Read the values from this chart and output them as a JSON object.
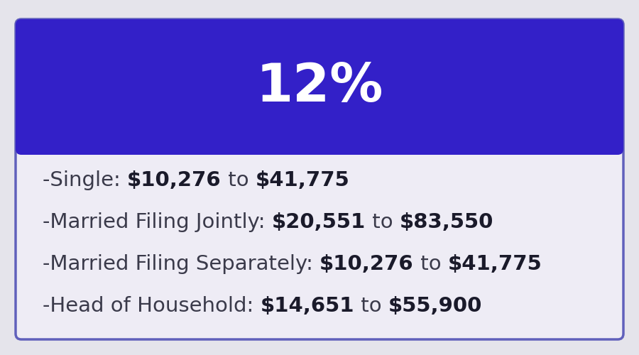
{
  "title": "12%",
  "title_bg_color": "#3320c8",
  "title_text_color": "#ffffff",
  "title_fontsize": 54,
  "body_bg_color": "#eeecf5",
  "outer_bg_color": "#e5e4eb",
  "border_color": "#6060bb",
  "rows": [
    {
      "prefix": "-Single: ",
      "bold1": "$10,276",
      "mid": " to ",
      "bold2": "$41,775"
    },
    {
      "prefix": "-Married Filing Jointly: ",
      "bold1": "$20,551",
      "mid": " to ",
      "bold2": "$83,550"
    },
    {
      "prefix": "-Married Filing Separately: ",
      "bold1": "$10,276",
      "mid": " to ",
      "bold2": "$41,775"
    },
    {
      "prefix": "-Head of Household: ",
      "bold1": "$14,651",
      "mid": " to ",
      "bold2": "$55,900"
    }
  ],
  "normal_text_color": "#3a3a4a",
  "bold_text_color": "#1a1a2a",
  "row_fontsize": 21,
  "figsize": [
    9.0,
    5.0
  ],
  "dpi": 100
}
